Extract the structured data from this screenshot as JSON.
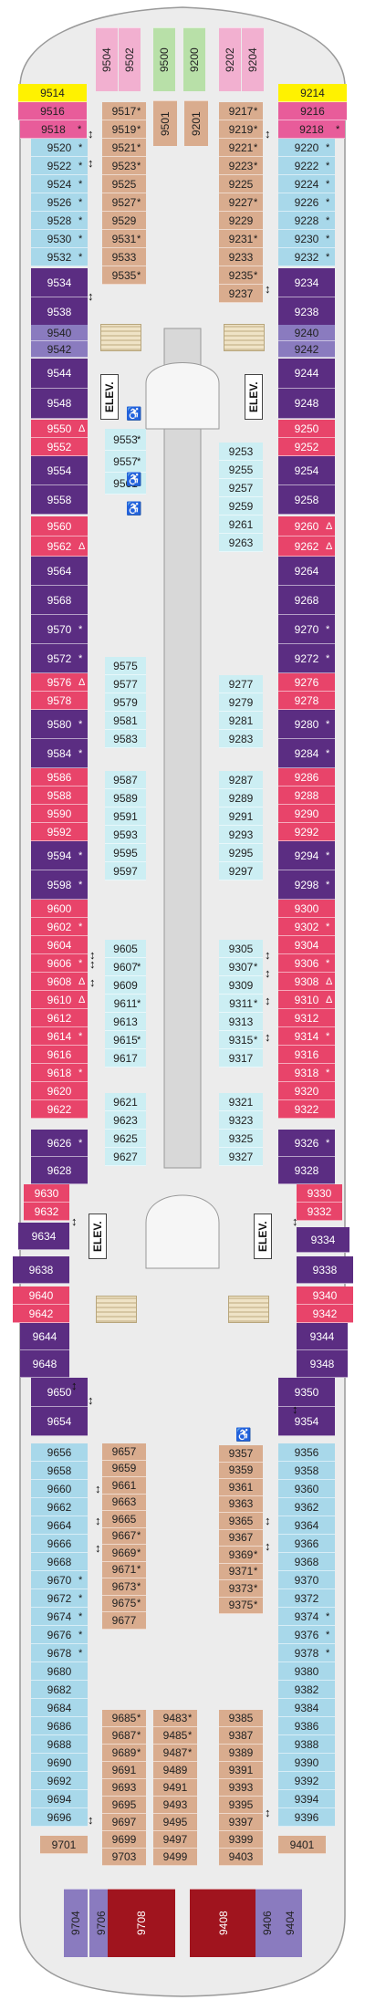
{
  "colors": {
    "blue": "#a8d8ea",
    "purple": "#5b2d82",
    "lavender": "#8a7bbf",
    "red": "#e8446a",
    "tan": "#d9ac8e",
    "yellow": "#fff200",
    "pink": "#e85c9a",
    "green": "#b8e0a8",
    "pinktop": "#f2b0d0",
    "lightblue": "#cceef3",
    "dark_red": "#a0141e",
    "deck": "#e6e6e6"
  },
  "elevator_label": "ELEV.",
  "symbols": {
    "connecting": "↕",
    "star": "*",
    "delta": "Δ",
    "accessible": "♿",
    "ph": "⊞"
  },
  "cabins": [
    {
      "id": "9504",
      "c": "pinktop",
      "v": 1
    },
    {
      "id": "9502",
      "c": "pinktop",
      "v": 1
    },
    {
      "id": "9500",
      "c": "green",
      "v": 1
    },
    {
      "id": "9200",
      "c": "green",
      "v": 1
    },
    {
      "id": "9202",
      "c": "pinktop",
      "v": 1
    },
    {
      "id": "9204",
      "c": "pinktop",
      "v": 1
    },
    {
      "id": "9514",
      "c": "yellow"
    },
    {
      "id": "9214",
      "c": "yellow"
    },
    {
      "id": "9516",
      "c": "pink"
    },
    {
      "id": "9216",
      "c": "pink"
    },
    {
      "id": "9518",
      "c": "pink",
      "s": "*"
    },
    {
      "id": "9218",
      "c": "pink",
      "s": "*"
    },
    {
      "id": "9520",
      "c": "blue",
      "s": "*"
    },
    {
      "id": "9522",
      "c": "blue",
      "s": "*"
    },
    {
      "id": "9524",
      "c": "blue",
      "s": "*"
    },
    {
      "id": "9526",
      "c": "blue",
      "s": "*"
    },
    {
      "id": "9528",
      "c": "blue",
      "s": "*"
    },
    {
      "id": "9530",
      "c": "blue",
      "s": "*"
    },
    {
      "id": "9532",
      "c": "blue",
      "s": "*"
    },
    {
      "id": "9220",
      "c": "blue",
      "s": "*"
    },
    {
      "id": "9222",
      "c": "blue",
      "s": "*"
    },
    {
      "id": "9224",
      "c": "blue",
      "s": "*"
    },
    {
      "id": "9226",
      "c": "blue",
      "s": "*"
    },
    {
      "id": "9228",
      "c": "blue",
      "s": "*"
    },
    {
      "id": "9230",
      "c": "blue",
      "s": "*"
    },
    {
      "id": "9232",
      "c": "blue",
      "s": "*"
    },
    {
      "id": "9517",
      "c": "tan",
      "s": "*"
    },
    {
      "id": "9519",
      "c": "tan",
      "s": "*"
    },
    {
      "id": "9521",
      "c": "tan",
      "s": "*"
    },
    {
      "id": "9523",
      "c": "tan",
      "s": "*"
    },
    {
      "id": "9525",
      "c": "tan"
    },
    {
      "id": "9527",
      "c": "tan",
      "s": "*"
    },
    {
      "id": "9529",
      "c": "tan"
    },
    {
      "id": "9531",
      "c": "tan",
      "s": "*"
    },
    {
      "id": "9533",
      "c": "tan"
    },
    {
      "id": "9535",
      "c": "tan",
      "s": "*"
    },
    {
      "id": "9501",
      "c": "tan",
      "v": 1
    },
    {
      "id": "9201",
      "c": "tan",
      "v": 1
    },
    {
      "id": "9217",
      "c": "tan",
      "s": "*"
    },
    {
      "id": "9219",
      "c": "tan",
      "s": "*"
    },
    {
      "id": "9221",
      "c": "tan",
      "s": "*"
    },
    {
      "id": "9223",
      "c": "tan",
      "s": "*"
    },
    {
      "id": "9225",
      "c": "tan"
    },
    {
      "id": "9227",
      "c": "tan",
      "s": "*"
    },
    {
      "id": "9229",
      "c": "tan"
    },
    {
      "id": "9231",
      "c": "tan",
      "s": "*"
    },
    {
      "id": "9233",
      "c": "tan"
    },
    {
      "id": "9235",
      "c": "tan",
      "s": "*"
    },
    {
      "id": "9237",
      "c": "tan"
    },
    {
      "id": "9534",
      "c": "purple"
    },
    {
      "id": "9538",
      "c": "purple"
    },
    {
      "id": "9234",
      "c": "purple"
    },
    {
      "id": "9238",
      "c": "purple"
    },
    {
      "id": "9540",
      "c": "lavender"
    },
    {
      "id": "9542",
      "c": "lavender"
    },
    {
      "id": "9240",
      "c": "lavender"
    },
    {
      "id": "9242",
      "c": "lavender"
    },
    {
      "id": "9544",
      "c": "purple"
    },
    {
      "id": "9548",
      "c": "purple"
    },
    {
      "id": "9244",
      "c": "purple"
    },
    {
      "id": "9248",
      "c": "purple"
    },
    {
      "id": "9550",
      "c": "red",
      "s": "Δ"
    },
    {
      "id": "9552",
      "c": "red"
    },
    {
      "id": "9250",
      "c": "red"
    },
    {
      "id": "9252",
      "c": "red"
    },
    {
      "id": "9554",
      "c": "purple"
    },
    {
      "id": "9558",
      "c": "purple"
    },
    {
      "id": "9254",
      "c": "purple"
    },
    {
      "id": "9258",
      "c": "purple"
    },
    {
      "id": "9560",
      "c": "red"
    },
    {
      "id": "9562",
      "c": "red",
      "s": "Δ"
    },
    {
      "id": "9260",
      "c": "red",
      "s": "Δ"
    },
    {
      "id": "9262",
      "c": "red",
      "s": "Δ"
    },
    {
      "id": "9564",
      "c": "purple"
    },
    {
      "id": "9568",
      "c": "purple"
    },
    {
      "id": "9570",
      "c": "purple",
      "s": "*"
    },
    {
      "id": "9572",
      "c": "purple",
      "s": "*"
    },
    {
      "id": "9264",
      "c": "purple"
    },
    {
      "id": "9268",
      "c": "purple"
    },
    {
      "id": "9270",
      "c": "purple",
      "s": "*"
    },
    {
      "id": "9272",
      "c": "purple",
      "s": "*"
    },
    {
      "id": "9576",
      "c": "red",
      "s": "Δ"
    },
    {
      "id": "9578",
      "c": "red"
    },
    {
      "id": "9276",
      "c": "red"
    },
    {
      "id": "9278",
      "c": "red"
    },
    {
      "id": "9580",
      "c": "purple",
      "s": "*"
    },
    {
      "id": "9584",
      "c": "purple",
      "s": "*"
    },
    {
      "id": "9280",
      "c": "purple",
      "s": "*"
    },
    {
      "id": "9284",
      "c": "purple",
      "s": "*"
    },
    {
      "id": "9586",
      "c": "red"
    },
    {
      "id": "9588",
      "c": "red"
    },
    {
      "id": "9590",
      "c": "red"
    },
    {
      "id": "9592",
      "c": "red"
    },
    {
      "id": "9286",
      "c": "red"
    },
    {
      "id": "9288",
      "c": "red"
    },
    {
      "id": "9290",
      "c": "red"
    },
    {
      "id": "9292",
      "c": "red"
    },
    {
      "id": "9594",
      "c": "purple",
      "s": "*"
    },
    {
      "id": "9598",
      "c": "purple",
      "s": "*"
    },
    {
      "id": "9294",
      "c": "purple",
      "s": "*"
    },
    {
      "id": "9298",
      "c": "purple",
      "s": "*"
    },
    {
      "id": "9600",
      "c": "red"
    },
    {
      "id": "9602",
      "c": "red",
      "s": "*"
    },
    {
      "id": "9604",
      "c": "red"
    },
    {
      "id": "9606",
      "c": "red",
      "s": "*"
    },
    {
      "id": "9608",
      "c": "red",
      "s": "Δ"
    },
    {
      "id": "9610",
      "c": "red",
      "s": "Δ"
    },
    {
      "id": "9612",
      "c": "red"
    },
    {
      "id": "9614",
      "c": "red",
      "s": "*"
    },
    {
      "id": "9616",
      "c": "red"
    },
    {
      "id": "9618",
      "c": "red",
      "s": "*"
    },
    {
      "id": "9620",
      "c": "red"
    },
    {
      "id": "9622",
      "c": "red"
    },
    {
      "id": "9300",
      "c": "red"
    },
    {
      "id": "9302",
      "c": "red",
      "s": "*"
    },
    {
      "id": "9304",
      "c": "red"
    },
    {
      "id": "9306",
      "c": "red",
      "s": "*"
    },
    {
      "id": "9308",
      "c": "red",
      "s": "Δ"
    },
    {
      "id": "9310",
      "c": "red",
      "s": "Δ"
    },
    {
      "id": "9312",
      "c": "red"
    },
    {
      "id": "9314",
      "c": "red",
      "s": "*"
    },
    {
      "id": "9316",
      "c": "red"
    },
    {
      "id": "9318",
      "c": "red",
      "s": "*"
    },
    {
      "id": "9320",
      "c": "red"
    },
    {
      "id": "9322",
      "c": "red"
    },
    {
      "id": "9626",
      "c": "purple",
      "s": "*"
    },
    {
      "id": "9628",
      "c": "purple"
    },
    {
      "id": "9326",
      "c": "purple",
      "s": "*"
    },
    {
      "id": "9328",
      "c": "purple"
    },
    {
      "id": "9553",
      "c": "lightblue",
      "s": "*"
    },
    {
      "id": "9557",
      "c": "lightblue",
      "s": "*"
    },
    {
      "id": "9561",
      "c": "lightblue",
      "s": "*"
    },
    {
      "id": "9253",
      "c": "lightblue"
    },
    {
      "id": "9255",
      "c": "lightblue"
    },
    {
      "id": "9257",
      "c": "lightblue"
    },
    {
      "id": "9259",
      "c": "lightblue"
    },
    {
      "id": "9261",
      "c": "lightblue"
    },
    {
      "id": "9263",
      "c": "lightblue"
    },
    {
      "id": "9575",
      "c": "lightblue"
    },
    {
      "id": "9577",
      "c": "lightblue"
    },
    {
      "id": "9579",
      "c": "lightblue"
    },
    {
      "id": "9581",
      "c": "lightblue"
    },
    {
      "id": "9583",
      "c": "lightblue"
    },
    {
      "id": "9277",
      "c": "lightblue"
    },
    {
      "id": "9279",
      "c": "lightblue"
    },
    {
      "id": "9281",
      "c": "lightblue"
    },
    {
      "id": "9283",
      "c": "lightblue"
    },
    {
      "id": "9587",
      "c": "lightblue"
    },
    {
      "id": "9589",
      "c": "lightblue"
    },
    {
      "id": "9591",
      "c": "lightblue"
    },
    {
      "id": "9593",
      "c": "lightblue"
    },
    {
      "id": "9595",
      "c": "lightblue"
    },
    {
      "id": "9597",
      "c": "lightblue"
    },
    {
      "id": "9287",
      "c": "lightblue"
    },
    {
      "id": "9289",
      "c": "lightblue"
    },
    {
      "id": "9291",
      "c": "lightblue"
    },
    {
      "id": "9293",
      "c": "lightblue"
    },
    {
      "id": "9295",
      "c": "lightblue"
    },
    {
      "id": "9297",
      "c": "lightblue"
    },
    {
      "id": "9605",
      "c": "lightblue"
    },
    {
      "id": "9607",
      "c": "lightblue",
      "s": "*"
    },
    {
      "id": "9609",
      "c": "lightblue"
    },
    {
      "id": "9611",
      "c": "lightblue",
      "s": "*"
    },
    {
      "id": "9613",
      "c": "lightblue"
    },
    {
      "id": "9615",
      "c": "lightblue",
      "s": "*"
    },
    {
      "id": "9617",
      "c": "lightblue"
    },
    {
      "id": "9305",
      "c": "lightblue"
    },
    {
      "id": "9307",
      "c": "lightblue",
      "s": "*"
    },
    {
      "id": "9309",
      "c": "lightblue"
    },
    {
      "id": "9311",
      "c": "lightblue",
      "s": "*"
    },
    {
      "id": "9313",
      "c": "lightblue"
    },
    {
      "id": "9315",
      "c": "lightblue",
      "s": "*"
    },
    {
      "id": "9317",
      "c": "lightblue"
    },
    {
      "id": "9621",
      "c": "lightblue"
    },
    {
      "id": "9623",
      "c": "lightblue"
    },
    {
      "id": "9625",
      "c": "lightblue"
    },
    {
      "id": "9627",
      "c": "lightblue"
    },
    {
      "id": "9321",
      "c": "lightblue"
    },
    {
      "id": "9323",
      "c": "lightblue"
    },
    {
      "id": "9325",
      "c": "lightblue"
    },
    {
      "id": "9327",
      "c": "lightblue"
    },
    {
      "id": "9630",
      "c": "red"
    },
    {
      "id": "9632",
      "c": "red"
    },
    {
      "id": "9330",
      "c": "red"
    },
    {
      "id": "9332",
      "c": "red"
    },
    {
      "id": "9634",
      "c": "purple"
    },
    {
      "id": "9334",
      "c": "purple"
    },
    {
      "id": "9638",
      "c": "purple"
    },
    {
      "id": "9338",
      "c": "purple"
    },
    {
      "id": "9640",
      "c": "red"
    },
    {
      "id": "9642",
      "c": "red"
    },
    {
      "id": "9340",
      "c": "red"
    },
    {
      "id": "9342",
      "c": "red"
    },
    {
      "id": "9644",
      "c": "purple"
    },
    {
      "id": "9648",
      "c": "purple"
    },
    {
      "id": "9650",
      "c": "purple"
    },
    {
      "id": "9654",
      "c": "purple"
    },
    {
      "id": "9344",
      "c": "purple"
    },
    {
      "id": "9348",
      "c": "purple"
    },
    {
      "id": "9350",
      "c": "purple"
    },
    {
      "id": "9354",
      "c": "purple"
    },
    {
      "id": "9656",
      "c": "blue"
    },
    {
      "id": "9658",
      "c": "blue"
    },
    {
      "id": "9660",
      "c": "blue"
    },
    {
      "id": "9662",
      "c": "blue"
    },
    {
      "id": "9664",
      "c": "blue"
    },
    {
      "id": "9666",
      "c": "blue"
    },
    {
      "id": "9668",
      "c": "blue"
    },
    {
      "id": "9670",
      "c": "blue",
      "s": "*"
    },
    {
      "id": "9672",
      "c": "blue",
      "s": "*"
    },
    {
      "id": "9674",
      "c": "blue",
      "s": "*"
    },
    {
      "id": "9676",
      "c": "blue",
      "s": "*"
    },
    {
      "id": "9678",
      "c": "blue",
      "s": "*"
    },
    {
      "id": "9680",
      "c": "blue"
    },
    {
      "id": "9682",
      "c": "blue"
    },
    {
      "id": "9684",
      "c": "blue"
    },
    {
      "id": "9686",
      "c": "blue"
    },
    {
      "id": "9688",
      "c": "blue"
    },
    {
      "id": "9690",
      "c": "blue"
    },
    {
      "id": "9692",
      "c": "blue"
    },
    {
      "id": "9694",
      "c": "blue"
    },
    {
      "id": "9696",
      "c": "blue"
    },
    {
      "id": "9356",
      "c": "blue"
    },
    {
      "id": "9358",
      "c": "blue"
    },
    {
      "id": "9360",
      "c": "blue"
    },
    {
      "id": "9362",
      "c": "blue"
    },
    {
      "id": "9364",
      "c": "blue"
    },
    {
      "id": "9366",
      "c": "blue"
    },
    {
      "id": "9368",
      "c": "blue"
    },
    {
      "id": "9370",
      "c": "blue"
    },
    {
      "id": "9372",
      "c": "blue"
    },
    {
      "id": "9374",
      "c": "blue",
      "s": "*"
    },
    {
      "id": "9376",
      "c": "blue",
      "s": "*"
    },
    {
      "id": "9378",
      "c": "blue",
      "s": "*"
    },
    {
      "id": "9380",
      "c": "blue"
    },
    {
      "id": "9382",
      "c": "blue"
    },
    {
      "id": "9384",
      "c": "blue"
    },
    {
      "id": "9386",
      "c": "blue"
    },
    {
      "id": "9388",
      "c": "blue"
    },
    {
      "id": "9390",
      "c": "blue"
    },
    {
      "id": "9392",
      "c": "blue"
    },
    {
      "id": "9394",
      "c": "blue"
    },
    {
      "id": "9396",
      "c": "blue"
    },
    {
      "id": "9657",
      "c": "tan"
    },
    {
      "id": "9659",
      "c": "tan"
    },
    {
      "id": "9661",
      "c": "tan"
    },
    {
      "id": "9663",
      "c": "tan"
    },
    {
      "id": "9665",
      "c": "tan"
    },
    {
      "id": "9667",
      "c": "tan",
      "s": "*"
    },
    {
      "id": "9669",
      "c": "tan",
      "s": "*"
    },
    {
      "id": "9671",
      "c": "tan",
      "s": "*"
    },
    {
      "id": "9673",
      "c": "tan",
      "s": "*"
    },
    {
      "id": "9675",
      "c": "tan",
      "s": "*"
    },
    {
      "id": "9677",
      "c": "tan"
    },
    {
      "id": "9357",
      "c": "tan"
    },
    {
      "id": "9359",
      "c": "tan"
    },
    {
      "id": "9361",
      "c": "tan"
    },
    {
      "id": "9363",
      "c": "tan"
    },
    {
      "id": "9365",
      "c": "tan"
    },
    {
      "id": "9367",
      "c": "tan"
    },
    {
      "id": "9369",
      "c": "tan",
      "s": "*"
    },
    {
      "id": "9371",
      "c": "tan",
      "s": "*"
    },
    {
      "id": "9373",
      "c": "tan",
      "s": "*"
    },
    {
      "id": "9375",
      "c": "tan",
      "s": "*"
    },
    {
      "id": "9685",
      "c": "tan",
      "s": "*"
    },
    {
      "id": "9687",
      "c": "tan",
      "s": "*"
    },
    {
      "id": "9689",
      "c": "tan",
      "s": "*"
    },
    {
      "id": "9691",
      "c": "tan"
    },
    {
      "id": "9693",
      "c": "tan"
    },
    {
      "id": "9695",
      "c": "tan"
    },
    {
      "id": "9697",
      "c": "tan"
    },
    {
      "id": "9699",
      "c": "tan"
    },
    {
      "id": "9703",
      "c": "tan"
    },
    {
      "id": "9483",
      "c": "tan",
      "s": "*"
    },
    {
      "id": "9485",
      "c": "tan",
      "s": "*"
    },
    {
      "id": "9487",
      "c": "tan",
      "s": "*"
    },
    {
      "id": "9489",
      "c": "tan"
    },
    {
      "id": "9491",
      "c": "tan"
    },
    {
      "id": "9493",
      "c": "tan"
    },
    {
      "id": "9495",
      "c": "tan"
    },
    {
      "id": "9497",
      "c": "tan"
    },
    {
      "id": "9499",
      "c": "tan"
    },
    {
      "id": "9385",
      "c": "tan"
    },
    {
      "id": "9387",
      "c": "tan"
    },
    {
      "id": "9389",
      "c": "tan"
    },
    {
      "id": "9391",
      "c": "tan"
    },
    {
      "id": "9393",
      "c": "tan"
    },
    {
      "id": "9395",
      "c": "tan"
    },
    {
      "id": "9397",
      "c": "tan"
    },
    {
      "id": "9399",
      "c": "tan"
    },
    {
      "id": "9403",
      "c": "tan"
    },
    {
      "id": "9701",
      "c": "tan"
    },
    {
      "id": "9401",
      "c": "tan"
    },
    {
      "id": "9704",
      "c": "lavender",
      "v": 1
    },
    {
      "id": "9706",
      "c": "lavender",
      "v": 1
    },
    {
      "id": "9708",
      "c": "dark_red",
      "v": 1
    },
    {
      "id": "9408",
      "c": "dark_red",
      "v": 1
    },
    {
      "id": "9406",
      "c": "lavender",
      "v": 1
    },
    {
      "id": "9404",
      "c": "lavender",
      "v": 1
    }
  ]
}
